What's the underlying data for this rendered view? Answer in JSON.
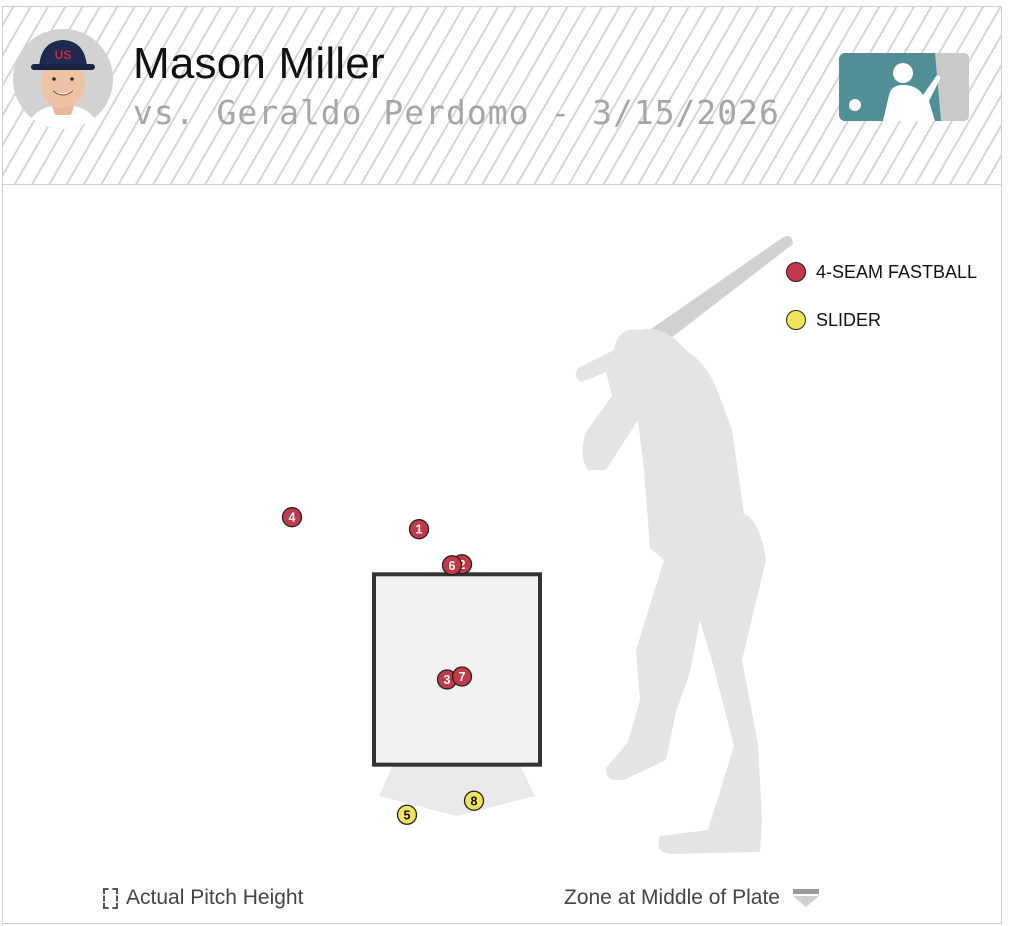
{
  "header": {
    "pitcher_name": "Mason Miller",
    "matchup": "vs. Geraldo Perdomo - 3/15/2026"
  },
  "colors": {
    "fastball": "#c23a4a",
    "slider": "#f1e35a",
    "silhouette": "#e4e4e4",
    "zone_fill": "#f2f2f2",
    "zone_border": "#333333",
    "logo_teal": "#4f8f95"
  },
  "legend": {
    "placement": "top-right",
    "items": [
      {
        "label": "4-SEAM FASTBALL",
        "color": "#c23a4a"
      },
      {
        "label": "SLIDER",
        "color": "#f1e35a"
      }
    ]
  },
  "footer": {
    "left_label": "Actual Pitch Height",
    "right_label": "Zone at Middle of Plate"
  },
  "chart_data": {
    "type": "scatter",
    "x_range": [
      -2.5,
      2.5
    ],
    "y_range": [
      0,
      5
    ],
    "strike_zone": {
      "x": [
        -0.83,
        0.83
      ],
      "y": [
        1.6,
        3.5
      ]
    },
    "series": [
      {
        "name": "4-SEAM FASTBALL",
        "points": [
          {
            "pitch": "1",
            "x": -0.38,
            "y": 3.95
          },
          {
            "pitch": "2",
            "x": 0.05,
            "y": 3.6
          },
          {
            "pitch": "3",
            "x": -0.1,
            "y": 2.45
          },
          {
            "pitch": "4",
            "x": -1.65,
            "y": 4.07
          },
          {
            "pitch": "6",
            "x": -0.05,
            "y": 3.59
          },
          {
            "pitch": "7",
            "x": 0.05,
            "y": 2.48
          }
        ]
      },
      {
        "name": "SLIDER",
        "points": [
          {
            "pitch": "5",
            "x": -0.5,
            "y": 1.1
          },
          {
            "pitch": "8",
            "x": 0.17,
            "y": 1.24
          }
        ]
      }
    ]
  }
}
